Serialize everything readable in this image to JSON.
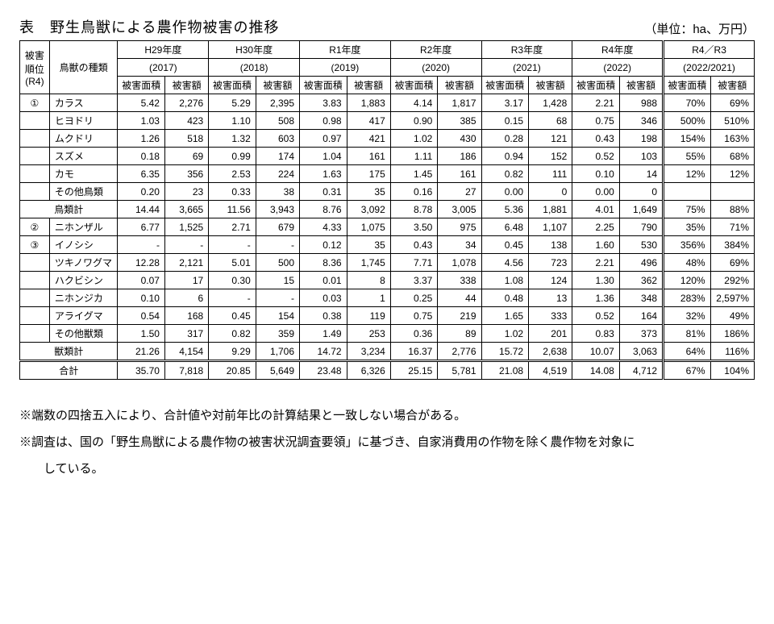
{
  "title": "表　野生鳥獣による農作物被害の推移",
  "unit": "（単位：ha、万円）",
  "header": {
    "rank": "被害\n順位\n(R4)",
    "species": "鳥獣の種類",
    "years": [
      {
        "top": "H29年度",
        "sub": "(2017)"
      },
      {
        "top": "H30年度",
        "sub": "(2018)"
      },
      {
        "top": "R1年度",
        "sub": "(2019)"
      },
      {
        "top": "R2年度",
        "sub": "(2020)"
      },
      {
        "top": "R3年度",
        "sub": "(2021)"
      },
      {
        "top": "R4年度",
        "sub": "(2022)"
      },
      {
        "top": "R4／R3",
        "sub": "(2022/2021)"
      }
    ],
    "area": "被害面積",
    "value": "被害額"
  },
  "rows": [
    {
      "rank": "①",
      "name": "カラス",
      "cells": [
        "5.42",
        "2,276",
        "5.29",
        "2,395",
        "3.83",
        "1,883",
        "4.14",
        "1,817",
        "3.17",
        "1,428",
        "2.21",
        "988",
        "70%",
        "69%"
      ]
    },
    {
      "rank": "",
      "name": "ヒヨドリ",
      "cells": [
        "1.03",
        "423",
        "1.10",
        "508",
        "0.98",
        "417",
        "0.90",
        "385",
        "0.15",
        "68",
        "0.75",
        "346",
        "500%",
        "510%"
      ]
    },
    {
      "rank": "",
      "name": "ムクドリ",
      "cells": [
        "1.26",
        "518",
        "1.32",
        "603",
        "0.97",
        "421",
        "1.02",
        "430",
        "0.28",
        "121",
        "0.43",
        "198",
        "154%",
        "163%"
      ]
    },
    {
      "rank": "",
      "name": "スズメ",
      "cells": [
        "0.18",
        "69",
        "0.99",
        "174",
        "1.04",
        "161",
        "1.11",
        "186",
        "0.94",
        "152",
        "0.52",
        "103",
        "55%",
        "68%"
      ]
    },
    {
      "rank": "",
      "name": "カモ",
      "cells": [
        "6.35",
        "356",
        "2.53",
        "224",
        "1.63",
        "175",
        "1.45",
        "161",
        "0.82",
        "111",
        "0.10",
        "14",
        "12%",
        "12%"
      ]
    },
    {
      "rank": "",
      "name": "その他鳥類",
      "cells": [
        "0.20",
        "23",
        "0.33",
        "38",
        "0.31",
        "35",
        "0.16",
        "27",
        "0.00",
        "0",
        "0.00",
        "0",
        "",
        ""
      ]
    },
    {
      "subtotal": true,
      "name": "鳥類計",
      "cells": [
        "14.44",
        "3,665",
        "11.56",
        "3,943",
        "8.76",
        "3,092",
        "8.78",
        "3,005",
        "5.36",
        "1,881",
        "4.01",
        "1,649",
        "75%",
        "88%"
      ]
    },
    {
      "rank": "②",
      "name": "ニホンザル",
      "cells": [
        "6.77",
        "1,525",
        "2.71",
        "679",
        "4.33",
        "1,075",
        "3.50",
        "975",
        "6.48",
        "1,107",
        "2.25",
        "790",
        "35%",
        "71%"
      ]
    },
    {
      "rank": "③",
      "name": "イノシシ",
      "cells": [
        "-",
        "-",
        "-",
        "-",
        "0.12",
        "35",
        "0.43",
        "34",
        "0.45",
        "138",
        "1.60",
        "530",
        "356%",
        "384%"
      ]
    },
    {
      "rank": "",
      "name": "ツキノワグマ",
      "cells": [
        "12.28",
        "2,121",
        "5.01",
        "500",
        "8.36",
        "1,745",
        "7.71",
        "1,078",
        "4.56",
        "723",
        "2.21",
        "496",
        "48%",
        "69%"
      ]
    },
    {
      "rank": "",
      "name": "ハクビシン",
      "cells": [
        "0.07",
        "17",
        "0.30",
        "15",
        "0.01",
        "8",
        "3.37",
        "338",
        "1.08",
        "124",
        "1.30",
        "362",
        "120%",
        "292%"
      ]
    },
    {
      "rank": "",
      "name": "ニホンジカ",
      "cells": [
        "0.10",
        "6",
        "-",
        "-",
        "0.03",
        "1",
        "0.25",
        "44",
        "0.48",
        "13",
        "1.36",
        "348",
        "283%",
        "2,597%"
      ]
    },
    {
      "rank": "",
      "name": "アライグマ",
      "cells": [
        "0.54",
        "168",
        "0.45",
        "154",
        "0.38",
        "119",
        "0.75",
        "219",
        "1.65",
        "333",
        "0.52",
        "164",
        "32%",
        "49%"
      ]
    },
    {
      "rank": "",
      "name": "その他獣類",
      "cells": [
        "1.50",
        "317",
        "0.82",
        "359",
        "1.49",
        "253",
        "0.36",
        "89",
        "1.02",
        "201",
        "0.83",
        "373",
        "81%",
        "186%"
      ]
    },
    {
      "subtotal": true,
      "name": "獣類計",
      "cells": [
        "21.26",
        "4,154",
        "9.29",
        "1,706",
        "14.72",
        "3,234",
        "16.37",
        "2,776",
        "15.72",
        "2,638",
        "10.07",
        "3,063",
        "64%",
        "116%"
      ]
    },
    {
      "total": true,
      "name": "合計",
      "cells": [
        "35.70",
        "7,818",
        "20.85",
        "5,649",
        "23.48",
        "6,326",
        "25.15",
        "5,781",
        "21.08",
        "4,519",
        "14.08",
        "4,712",
        "67%",
        "104%"
      ]
    }
  ],
  "notes": [
    "※端数の四捨五入により、合計値や対前年比の計算結果と一致しない場合がある。",
    "※調査は、国の「野生鳥獣による農作物の被害状況調査要領」に基づき、自家消費用の作物を除く農作物を対象に",
    "　　している。"
  ]
}
